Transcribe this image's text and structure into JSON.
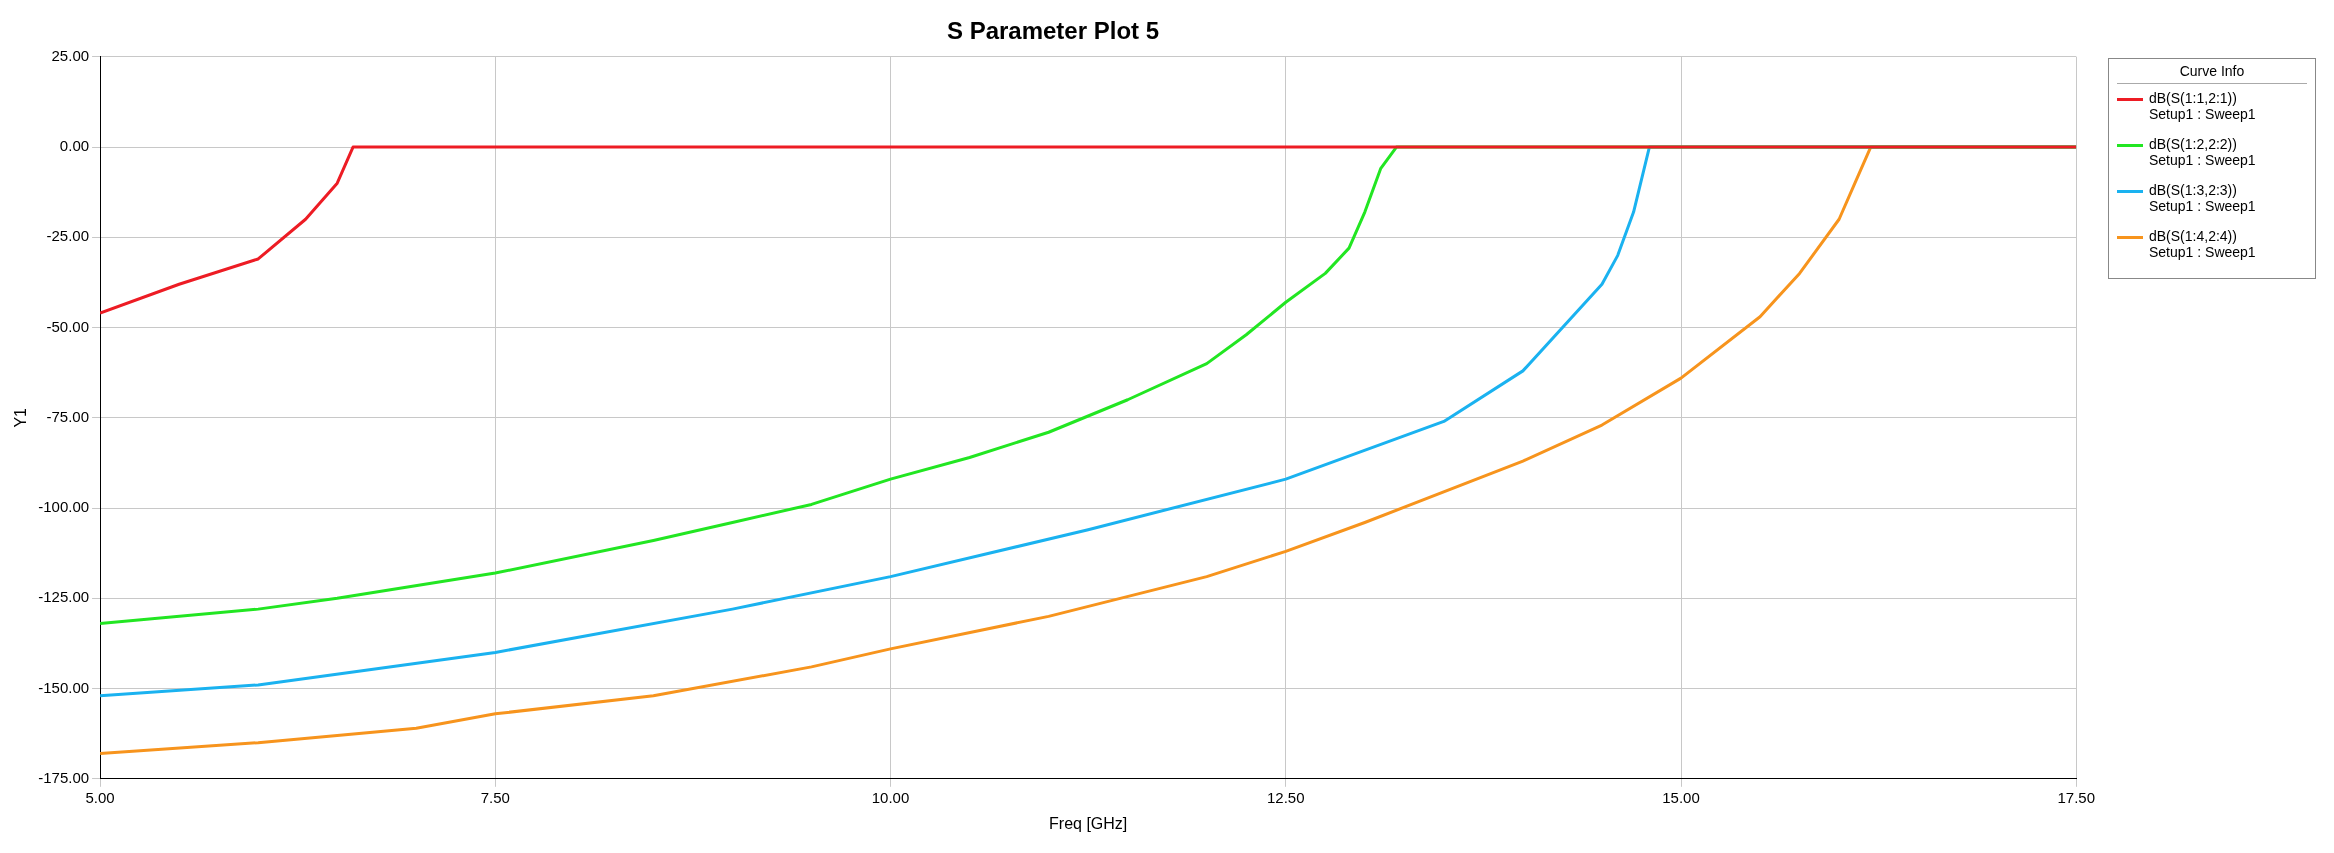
{
  "chart_data": {
    "type": "line",
    "title": "S Parameter Plot 5",
    "xlabel": "Freq [GHz]",
    "ylabel": "Y1",
    "legend_title": "Curve Info",
    "legend": "right",
    "grid": true,
    "marker": "none",
    "line_style": "solid",
    "xlim": [
      5,
      17.5
    ],
    "xticks": [
      {
        "value": 5,
        "label": "5.00"
      },
      {
        "value": 7.5,
        "label": "7.50"
      },
      {
        "value": 10,
        "label": "10.00"
      },
      {
        "value": 12.5,
        "label": "12.50"
      },
      {
        "value": 15,
        "label": "15.00"
      },
      {
        "value": 17.5,
        "label": "17.50"
      }
    ],
    "ylim": [
      -175,
      25
    ],
    "yticks": [
      {
        "value": -175,
        "label": "-175.00"
      },
      {
        "value": -150,
        "label": "-150.00"
      },
      {
        "value": -125,
        "label": "-125.00"
      },
      {
        "value": -100,
        "label": "-100.00"
      },
      {
        "value": -75,
        "label": "-75.00"
      },
      {
        "value": -50,
        "label": "-50.00"
      },
      {
        "value": -25,
        "label": "-25.00"
      },
      {
        "value": 0,
        "label": "0.00"
      },
      {
        "value": 25,
        "label": "25.00"
      }
    ],
    "series": [
      {
        "name": "dB(S(1:1,2:1))\nSetup1 : Sweep1",
        "color": "#ed1c24",
        "x": [
          5,
          5.5,
          6,
          6.3,
          6.5,
          6.6,
          17.5
        ],
        "values": [
          -46,
          -38,
          -31,
          -20,
          -10,
          0,
          0
        ]
      },
      {
        "name": "dB(S(1:2,2:2))\nSetup1 : Sweep1",
        "color": "#22e622",
        "x": [
          5,
          6,
          6.5,
          7.5,
          8.5,
          9,
          9.5,
          10,
          10.5,
          11,
          11.5,
          12,
          12.25,
          12.5,
          12.75,
          12.9,
          13,
          13.1,
          13.2,
          17.5
        ],
        "values": [
          -132,
          -128,
          -125,
          -118,
          -109,
          -104,
          -99,
          -92,
          -86,
          -79,
          -70,
          -60,
          -52,
          -43,
          -35,
          -28,
          -18,
          -6,
          0,
          0
        ]
      },
      {
        "name": "dB(S(1:3,2:3))\nSetup1 : Sweep1",
        "color": "#1ab2f0",
        "x": [
          5,
          6,
          7.5,
          9,
          10,
          11.25,
          12.5,
          13.5,
          14,
          14.5,
          14.6,
          14.7,
          14.8,
          17.5
        ],
        "values": [
          -152,
          -149,
          -140,
          -128,
          -119,
          -106,
          -92,
          -76,
          -62,
          -38,
          -30,
          -18,
          0,
          0
        ]
      },
      {
        "name": "dB(S(1:4,2:4))\nSetup1 : Sweep1",
        "color": "#f7941d",
        "x": [
          5,
          6,
          7,
          7.5,
          8.5,
          9.5,
          10,
          11,
          12,
          12.5,
          13,
          14,
          14.5,
          15,
          15.5,
          15.75,
          16,
          16.1,
          16.2,
          17.5
        ],
        "values": [
          -168,
          -165,
          -161,
          -157,
          -152,
          -144,
          -139,
          -130,
          -119,
          -112,
          -104,
          -87,
          -77,
          -64,
          -47,
          -35,
          -20,
          -10,
          0,
          0
        ]
      }
    ]
  }
}
